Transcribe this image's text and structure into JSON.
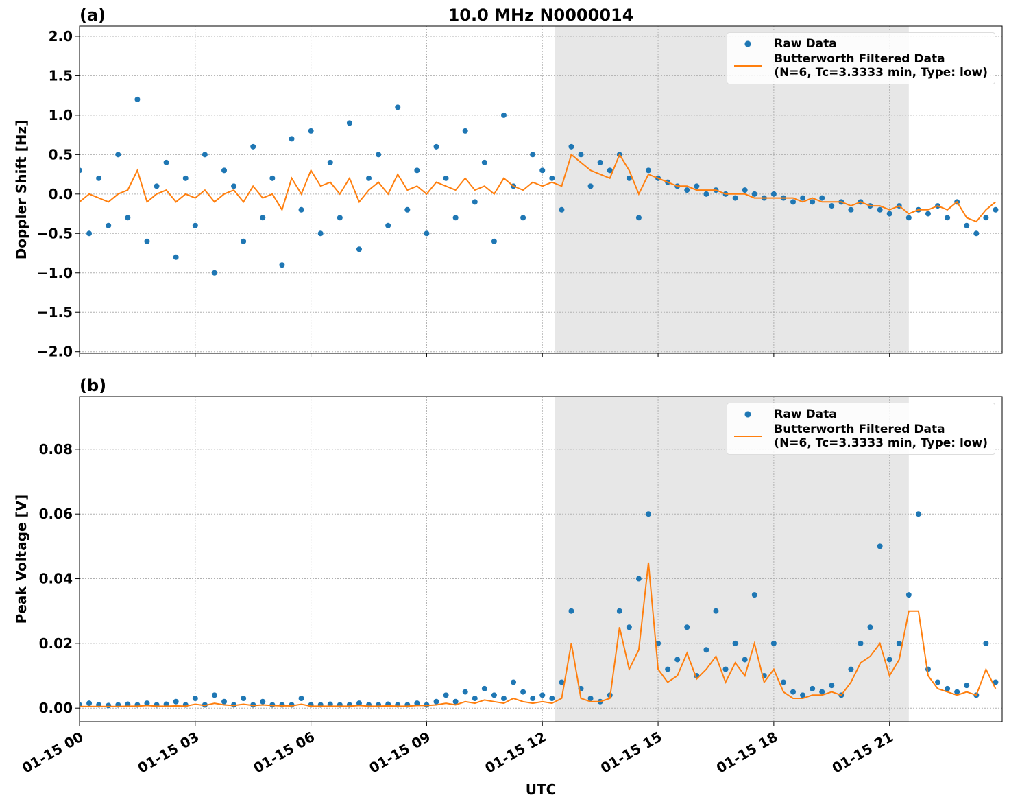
{
  "chart_data": [
    {
      "type": "scatter_line",
      "panel_label": "(a)",
      "title": "10.0 MHz N0000014",
      "ylabel": "Doppler Shift [Hz]",
      "xlim": [
        0,
        23.92
      ],
      "xticks": [
        0,
        3,
        6,
        9,
        12,
        15,
        18,
        21
      ],
      "ylim": [
        -2.02,
        2.13
      ],
      "yticks": [
        {
          "value": -2.0,
          "label": "−2.0"
        },
        {
          "value": -1.5,
          "label": "−1.5"
        },
        {
          "value": -1.0,
          "label": "−1.0"
        },
        {
          "value": -0.5,
          "label": "−0.5"
        },
        {
          "value": 0.0,
          "label": "0.0"
        },
        {
          "value": 0.5,
          "label": "0.5"
        },
        {
          "value": 1.0,
          "label": "1.0"
        },
        {
          "value": 1.5,
          "label": "1.5"
        },
        {
          "value": 2.0,
          "label": "2.0"
        }
      ],
      "grid": true,
      "shaded_span": [
        12.33,
        21.5
      ],
      "legend": "upper right",
      "x": [
        0,
        0.25,
        0.5,
        0.75,
        1,
        1.25,
        1.5,
        1.75,
        2,
        2.25,
        2.5,
        2.75,
        3,
        3.25,
        3.5,
        3.75,
        4,
        4.25,
        4.5,
        4.75,
        5,
        5.25,
        5.5,
        5.75,
        6,
        6.25,
        6.5,
        6.75,
        7,
        7.25,
        7.5,
        7.75,
        8,
        8.25,
        8.5,
        8.75,
        9,
        9.25,
        9.5,
        9.75,
        10,
        10.25,
        10.5,
        10.75,
        11,
        11.25,
        11.5,
        11.75,
        12,
        12.25,
        12.5,
        12.75,
        13,
        13.25,
        13.5,
        13.75,
        14,
        14.25,
        14.5,
        14.75,
        15,
        15.25,
        15.5,
        15.75,
        16,
        16.25,
        16.5,
        16.75,
        17,
        17.25,
        17.5,
        17.75,
        18,
        18.25,
        18.5,
        18.75,
        19,
        19.25,
        19.5,
        19.75,
        20,
        20.25,
        20.5,
        20.75,
        21,
        21.25,
        21.5,
        21.75,
        22,
        22.25,
        22.5,
        22.75,
        23,
        23.25,
        23.5,
        23.75
      ],
      "series": [
        {
          "name": "Raw Data",
          "kind": "scatter",
          "color": "#1f77b4",
          "values": [
            0.3,
            -0.5,
            0.2,
            -0.4,
            0.5,
            -0.3,
            1.2,
            -0.6,
            0.1,
            0.4,
            -0.8,
            0.2,
            -0.4,
            0.5,
            -1.0,
            0.3,
            0.1,
            -0.6,
            0.6,
            -0.3,
            0.2,
            -0.9,
            0.7,
            -0.2,
            0.8,
            -0.5,
            0.4,
            -0.3,
            0.9,
            -0.7,
            0.2,
            0.5,
            -0.4,
            1.1,
            -0.2,
            0.3,
            -0.5,
            0.6,
            0.2,
            -0.3,
            0.8,
            -0.1,
            0.4,
            -0.6,
            1.0,
            0.1,
            -0.3,
            0.5,
            0.3,
            0.2,
            -0.2,
            0.6,
            0.5,
            0.1,
            0.4,
            0.3,
            0.5,
            0.2,
            -0.3,
            0.3,
            0.2,
            0.15,
            0.1,
            0.05,
            0.1,
            0.0,
            0.05,
            0.0,
            -0.05,
            0.05,
            0.0,
            -0.05,
            0.0,
            -0.05,
            -0.1,
            -0.05,
            -0.1,
            -0.05,
            -0.15,
            -0.1,
            -0.2,
            -0.1,
            -0.15,
            -0.2,
            -0.25,
            -0.15,
            -0.3,
            -0.2,
            -0.25,
            -0.15,
            -0.3,
            -0.1,
            -0.4,
            -0.5,
            -0.3,
            -0.2
          ]
        },
        {
          "name": "Butterworth Filtered Data\n(N=6, Tc=3.3333 min, Type: low)",
          "kind": "line",
          "color": "#ff7f0e",
          "values": [
            -0.1,
            0.0,
            -0.05,
            -0.1,
            0.0,
            0.05,
            0.3,
            -0.1,
            0.0,
            0.05,
            -0.1,
            0.0,
            -0.05,
            0.05,
            -0.1,
            0.0,
            0.05,
            -0.1,
            0.1,
            -0.05,
            0.0,
            -0.2,
            0.2,
            0.0,
            0.3,
            0.1,
            0.15,
            0.0,
            0.2,
            -0.1,
            0.05,
            0.15,
            0.0,
            0.25,
            0.05,
            0.1,
            0.0,
            0.15,
            0.1,
            0.05,
            0.2,
            0.05,
            0.1,
            0.0,
            0.2,
            0.1,
            0.05,
            0.15,
            0.1,
            0.15,
            0.1,
            0.5,
            0.4,
            0.3,
            0.25,
            0.2,
            0.5,
            0.3,
            0.0,
            0.25,
            0.2,
            0.15,
            0.1,
            0.1,
            0.05,
            0.05,
            0.05,
            0.0,
            0.0,
            0.0,
            -0.05,
            -0.05,
            -0.05,
            -0.05,
            -0.05,
            -0.1,
            -0.05,
            -0.1,
            -0.1,
            -0.1,
            -0.15,
            -0.1,
            -0.15,
            -0.15,
            -0.2,
            -0.15,
            -0.25,
            -0.2,
            -0.2,
            -0.15,
            -0.2,
            -0.1,
            -0.3,
            -0.35,
            -0.2,
            -0.1
          ]
        }
      ]
    },
    {
      "type": "scatter_line",
      "panel_label": "(b)",
      "ylabel": "Peak Voltage [V]",
      "xlabel": "UTC",
      "xlim": [
        0,
        23.92
      ],
      "xticks": [
        {
          "value": 0,
          "label": "01-15 00"
        },
        {
          "value": 3,
          "label": "01-15 03"
        },
        {
          "value": 6,
          "label": "01-15 06"
        },
        {
          "value": 9,
          "label": "01-15 09"
        },
        {
          "value": 12,
          "label": "01-15 12"
        },
        {
          "value": 15,
          "label": "01-15 15"
        },
        {
          "value": 18,
          "label": "01-15 18"
        },
        {
          "value": 21,
          "label": "01-15 21"
        }
      ],
      "ylim": [
        -0.0042,
        0.0963
      ],
      "yticks": [
        {
          "value": 0.0,
          "label": "0.00"
        },
        {
          "value": 0.02,
          "label": "0.02"
        },
        {
          "value": 0.04,
          "label": "0.04"
        },
        {
          "value": 0.06,
          "label": "0.06"
        },
        {
          "value": 0.08,
          "label": "0.08"
        }
      ],
      "grid": true,
      "shaded_span": [
        12.33,
        21.5
      ],
      "legend": "upper right",
      "x": [
        0,
        0.25,
        0.5,
        0.75,
        1,
        1.25,
        1.5,
        1.75,
        2,
        2.25,
        2.5,
        2.75,
        3,
        3.25,
        3.5,
        3.75,
        4,
        4.25,
        4.5,
        4.75,
        5,
        5.25,
        5.5,
        5.75,
        6,
        6.25,
        6.5,
        6.75,
        7,
        7.25,
        7.5,
        7.75,
        8,
        8.25,
        8.5,
        8.75,
        9,
        9.25,
        9.5,
        9.75,
        10,
        10.25,
        10.5,
        10.75,
        11,
        11.25,
        11.5,
        11.75,
        12,
        12.25,
        12.5,
        12.75,
        13,
        13.25,
        13.5,
        13.75,
        14,
        14.25,
        14.5,
        14.75,
        15,
        15.25,
        15.5,
        15.75,
        16,
        16.25,
        16.5,
        16.75,
        17,
        17.25,
        17.5,
        17.75,
        18,
        18.25,
        18.5,
        18.75,
        19,
        19.25,
        19.5,
        19.75,
        20,
        20.25,
        20.5,
        20.75,
        21,
        21.25,
        21.5,
        21.75,
        22,
        22.25,
        22.5,
        22.75,
        23,
        23.25,
        23.5,
        23.75
      ],
      "series": [
        {
          "name": "Raw Data",
          "kind": "scatter",
          "color": "#1f77b4",
          "values": [
            0.001,
            0.0015,
            0.001,
            0.0008,
            0.001,
            0.0012,
            0.001,
            0.0015,
            0.001,
            0.0012,
            0.002,
            0.001,
            0.003,
            0.001,
            0.004,
            0.002,
            0.001,
            0.003,
            0.001,
            0.002,
            0.001,
            0.001,
            0.001,
            0.003,
            0.001,
            0.001,
            0.0012,
            0.001,
            0.001,
            0.0015,
            0.001,
            0.001,
            0.0012,
            0.001,
            0.001,
            0.0015,
            0.001,
            0.002,
            0.004,
            0.002,
            0.005,
            0.003,
            0.006,
            0.004,
            0.003,
            0.008,
            0.005,
            0.003,
            0.004,
            0.003,
            0.008,
            0.03,
            0.006,
            0.003,
            0.002,
            0.004,
            0.03,
            0.025,
            0.04,
            0.06,
            0.02,
            0.012,
            0.015,
            0.025,
            0.01,
            0.018,
            0.03,
            0.012,
            0.02,
            0.015,
            0.035,
            0.01,
            0.02,
            0.008,
            0.005,
            0.004,
            0.006,
            0.005,
            0.007,
            0.004,
            0.012,
            0.02,
            0.025,
            0.05,
            0.015,
            0.02,
            0.035,
            0.06,
            0.012,
            0.008,
            0.006,
            0.005,
            0.007,
            0.004,
            0.02,
            0.008
          ]
        },
        {
          "name": "Butterworth Filtered Data\n(N=6, Tc=3.3333 min, Type: low)",
          "kind": "line",
          "color": "#ff7f0e",
          "values": [
            0.0005,
            0.0005,
            0.0005,
            0.0005,
            0.0005,
            0.0006,
            0.0006,
            0.0008,
            0.0006,
            0.0006,
            0.0007,
            0.0006,
            0.0012,
            0.0008,
            0.0015,
            0.001,
            0.0008,
            0.0012,
            0.0008,
            0.001,
            0.0008,
            0.0007,
            0.0007,
            0.0012,
            0.0006,
            0.0006,
            0.0006,
            0.0006,
            0.0006,
            0.0008,
            0.0006,
            0.0006,
            0.0007,
            0.0006,
            0.0006,
            0.0008,
            0.0008,
            0.001,
            0.0015,
            0.001,
            0.002,
            0.0015,
            0.0025,
            0.002,
            0.0015,
            0.003,
            0.002,
            0.0015,
            0.002,
            0.0015,
            0.003,
            0.02,
            0.003,
            0.002,
            0.002,
            0.003,
            0.025,
            0.012,
            0.018,
            0.045,
            0.012,
            0.008,
            0.01,
            0.017,
            0.009,
            0.012,
            0.016,
            0.008,
            0.014,
            0.01,
            0.02,
            0.008,
            0.012,
            0.005,
            0.003,
            0.003,
            0.004,
            0.004,
            0.005,
            0.004,
            0.008,
            0.014,
            0.016,
            0.02,
            0.01,
            0.015,
            0.03,
            0.03,
            0.01,
            0.006,
            0.005,
            0.004,
            0.005,
            0.004,
            0.012,
            0.006
          ]
        }
      ]
    }
  ]
}
